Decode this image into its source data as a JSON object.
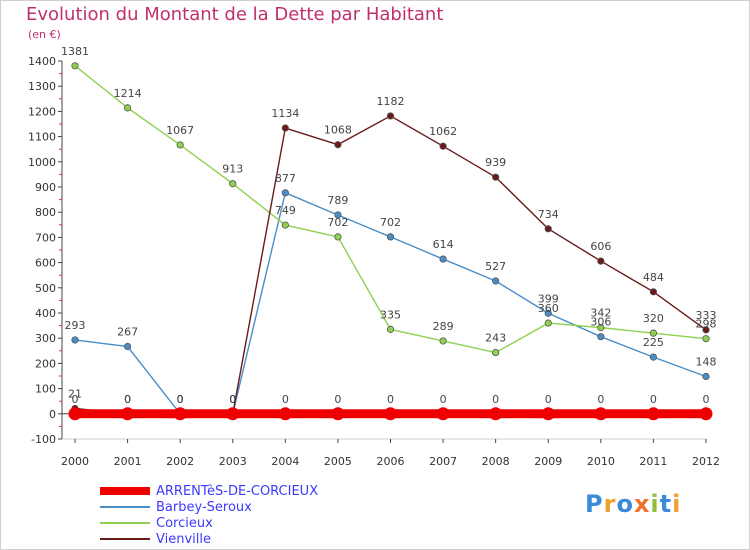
{
  "title": "Evolution du Montant de la Dette par Habitant",
  "unit_label": "(en €)",
  "logo": {
    "text": "Proxiti",
    "colors": [
      "#3a8ad8",
      "#f0a030",
      "#3a8ad8",
      "#f07030",
      "#90c040",
      "#3a8ad8",
      "#f0a030"
    ]
  },
  "chart_data": {
    "type": "line",
    "title": "Evolution du Montant de la Dette par Habitant",
    "ylabel": "(en €)",
    "xlabel": "",
    "x": [
      "2000",
      "2001",
      "2002",
      "2003",
      "2004",
      "2005",
      "2006",
      "2007",
      "2008",
      "2009",
      "2010",
      "2011",
      "2012"
    ],
    "ylim": [
      -100,
      1400
    ],
    "yticks": [
      "-100",
      "0",
      "100",
      "200",
      "300",
      "400",
      "500",
      "600",
      "700",
      "800",
      "900",
      "1000",
      "1100",
      "1200",
      "1300",
      "1400"
    ],
    "grid": false,
    "legend_position": "bottom-left",
    "series": [
      {
        "name": "ARRENTèS-DE-CORCIEUX",
        "color": "#ee0000",
        "values": [
          0,
          0,
          0,
          0,
          0,
          0,
          0,
          0,
          0,
          0,
          0,
          0,
          0
        ],
        "labels": [
          "0",
          "0",
          "0",
          "0",
          "0",
          "0",
          "0",
          "0",
          "0",
          "0",
          "0",
          "0",
          "0"
        ]
      },
      {
        "name": "Barbey-Seroux",
        "color": "#4a8ec8",
        "values": [
          293,
          267,
          0,
          0,
          877,
          789,
          702,
          614,
          527,
          399,
          306,
          225,
          148
        ],
        "labels": [
          "293",
          "267",
          "0",
          "0",
          "877",
          "789",
          "702",
          "614",
          "527",
          "399",
          "306",
          "225",
          "148"
        ]
      },
      {
        "name": "Corcieux",
        "color": "#8fd14f",
        "values": [
          1381,
          1214,
          1067,
          913,
          749,
          702,
          335,
          289,
          243,
          360,
          342,
          320,
          298
        ],
        "labels": [
          "1381",
          "1214",
          "1067",
          "913",
          "749",
          "702",
          "335",
          "289",
          "243",
          "360",
          "342",
          "320",
          "298"
        ]
      },
      {
        "name": "Vienville",
        "color": "#6b1a1a",
        "values": [
          21,
          0,
          0,
          0,
          1134,
          1068,
          1182,
          1062,
          939,
          734,
          606,
          484,
          333
        ],
        "labels": [
          "21",
          "0",
          "0",
          "0",
          "1134",
          "1068",
          "1182",
          "1062",
          "939",
          "734",
          "606",
          "484",
          "333"
        ]
      }
    ]
  }
}
